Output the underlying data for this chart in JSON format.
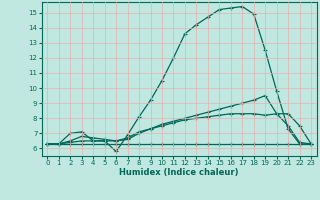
{
  "xlabel": "Humidex (Indice chaleur)",
  "xlim": [
    -0.5,
    23.5
  ],
  "ylim": [
    5.5,
    15.7
  ],
  "yticks": [
    6,
    7,
    8,
    9,
    10,
    11,
    12,
    13,
    14,
    15
  ],
  "xticks": [
    0,
    1,
    2,
    3,
    4,
    5,
    6,
    7,
    8,
    9,
    10,
    11,
    12,
    13,
    14,
    15,
    16,
    17,
    18,
    19,
    20,
    21,
    22,
    23
  ],
  "bg_color": "#c0e8e0",
  "grid_color": "#e8b0b0",
  "line_color": "#006858",
  "line1_x": [
    0,
    1,
    2,
    3,
    4,
    5,
    6,
    7,
    8,
    9,
    10,
    11,
    12,
    13,
    14,
    15,
    16,
    17,
    18,
    19,
    20,
    21,
    22,
    23
  ],
  "line1_y": [
    6.3,
    6.3,
    7.0,
    7.1,
    6.5,
    6.5,
    5.8,
    6.9,
    8.1,
    9.2,
    10.5,
    12.0,
    13.6,
    14.2,
    14.7,
    15.2,
    15.3,
    15.4,
    14.9,
    12.5,
    9.8,
    7.3,
    6.3,
    6.3
  ],
  "line2_x": [
    0,
    1,
    2,
    3,
    4,
    5,
    6,
    7,
    8,
    9,
    10,
    11,
    12,
    13,
    14,
    15,
    16,
    17,
    18,
    19,
    20,
    21,
    22,
    23
  ],
  "line2_y": [
    6.3,
    6.3,
    6.4,
    6.5,
    6.5,
    6.5,
    6.5,
    6.6,
    7.0,
    7.3,
    7.6,
    7.8,
    8.0,
    8.2,
    8.4,
    8.6,
    8.8,
    9.0,
    9.2,
    9.5,
    8.3,
    7.5,
    6.4,
    6.3
  ],
  "line3_x": [
    0,
    1,
    2,
    3,
    4,
    5,
    6,
    7,
    8,
    9,
    10,
    11,
    12,
    13,
    14,
    15,
    16,
    17,
    18,
    19,
    20,
    21,
    22,
    23
  ],
  "line3_y": [
    6.3,
    6.3,
    6.3,
    6.3,
    6.3,
    6.3,
    6.3,
    6.3,
    6.3,
    6.3,
    6.3,
    6.3,
    6.3,
    6.3,
    6.3,
    6.3,
    6.3,
    6.3,
    6.3,
    6.3,
    6.3,
    6.3,
    6.3,
    6.3
  ],
  "line4_x": [
    0,
    1,
    2,
    3,
    4,
    5,
    6,
    7,
    8,
    9,
    10,
    11,
    12,
    13,
    14,
    15,
    16,
    17,
    18,
    19,
    20,
    21,
    22,
    23
  ],
  "line4_y": [
    6.3,
    6.3,
    6.5,
    6.8,
    6.7,
    6.6,
    6.5,
    6.7,
    7.1,
    7.3,
    7.5,
    7.7,
    7.9,
    8.0,
    8.1,
    8.2,
    8.3,
    8.3,
    8.3,
    8.2,
    8.3,
    8.3,
    7.5,
    6.3
  ]
}
